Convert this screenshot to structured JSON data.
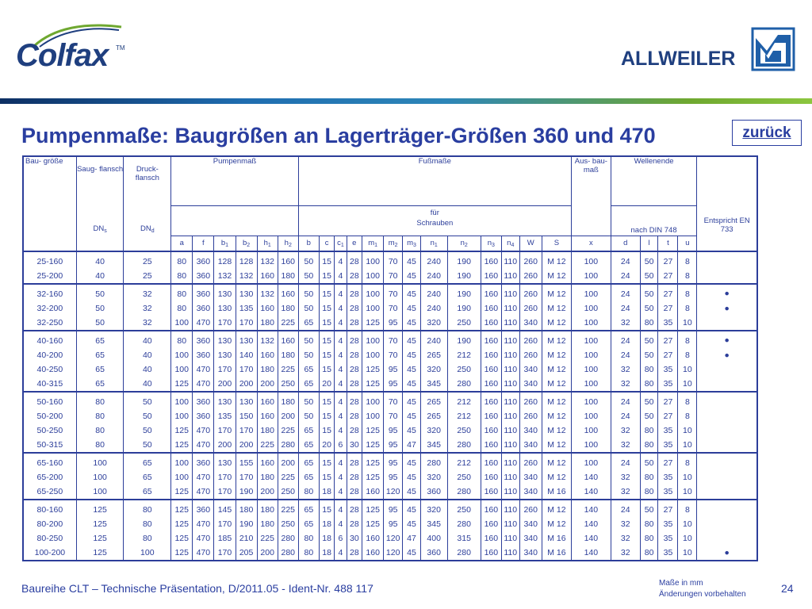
{
  "logos": {
    "colfax": "Colfax",
    "colfax_tm": "TM",
    "allweiler": "ALLWEILER"
  },
  "back_label": "zurück",
  "title": "Pumpenmaße: Baugrößen an Lagerträger-Größen 360 und 470",
  "header": {
    "bau_groesse": "Bau- größe",
    "saug": "Saug- flansch",
    "druck": "Druck- flansch",
    "pumpenmass": "Pumpenmaß",
    "fussmasse": "Fußmaße",
    "ausbau": "Aus- bau- maß",
    "wellenende": "Wellenende",
    "fuer": "für",
    "schrauben": "Schrauben",
    "nach_din": "nach DIN 748",
    "entspricht": "Entspricht EN 733",
    "dn": "DN",
    "dn_s": "s",
    "dn_d": "d",
    "cols": [
      [
        "a",
        ""
      ],
      [
        "f",
        ""
      ],
      [
        "b",
        "1"
      ],
      [
        "b",
        "2"
      ],
      [
        "h",
        "1"
      ],
      [
        "h",
        "2"
      ],
      [
        "b",
        ""
      ],
      [
        "c",
        ""
      ],
      [
        "c",
        "1"
      ],
      [
        "e",
        ""
      ],
      [
        "m",
        "1"
      ],
      [
        "m",
        "2"
      ],
      [
        "m",
        "3"
      ],
      [
        "n",
        "1"
      ],
      [
        "n",
        "2"
      ],
      [
        "n",
        "3"
      ],
      [
        "n",
        "4"
      ],
      [
        "W",
        ""
      ],
      [
        "S",
        ""
      ],
      [
        "x",
        ""
      ],
      [
        "d",
        ""
      ],
      [
        "l",
        ""
      ],
      [
        "t",
        ""
      ],
      [
        "u",
        ""
      ]
    ]
  },
  "groups": [
    [
      [
        "25-160",
        "40",
        "25",
        "80",
        "360",
        "128",
        "128",
        "132",
        "160",
        "50",
        "15",
        "4",
        "28",
        "100",
        "70",
        "45",
        "240",
        "190",
        "160",
        "110",
        "260",
        "M 12",
        "100",
        "24",
        "50",
        "27",
        "8",
        ""
      ],
      [
        "25-200",
        "40",
        "25",
        "80",
        "360",
        "132",
        "132",
        "160",
        "180",
        "50",
        "15",
        "4",
        "28",
        "100",
        "70",
        "45",
        "240",
        "190",
        "160",
        "110",
        "260",
        "M 12",
        "100",
        "24",
        "50",
        "27",
        "8",
        ""
      ]
    ],
    [
      [
        "32-160",
        "50",
        "32",
        "80",
        "360",
        "130",
        "130",
        "132",
        "160",
        "50",
        "15",
        "4",
        "28",
        "100",
        "70",
        "45",
        "240",
        "190",
        "160",
        "110",
        "260",
        "M 12",
        "100",
        "24",
        "50",
        "27",
        "8",
        "●"
      ],
      [
        "32-200",
        "50",
        "32",
        "80",
        "360",
        "130",
        "135",
        "160",
        "180",
        "50",
        "15",
        "4",
        "28",
        "100",
        "70",
        "45",
        "240",
        "190",
        "160",
        "110",
        "260",
        "M 12",
        "100",
        "24",
        "50",
        "27",
        "8",
        "●"
      ],
      [
        "32-250",
        "50",
        "32",
        "100",
        "470",
        "170",
        "170",
        "180",
        "225",
        "65",
        "15",
        "4",
        "28",
        "125",
        "95",
        "45",
        "320",
        "250",
        "160",
        "110",
        "340",
        "M 12",
        "100",
        "32",
        "80",
        "35",
        "10",
        ""
      ]
    ],
    [
      [
        "40-160",
        "65",
        "40",
        "80",
        "360",
        "130",
        "130",
        "132",
        "160",
        "50",
        "15",
        "4",
        "28",
        "100",
        "70",
        "45",
        "240",
        "190",
        "160",
        "110",
        "260",
        "M 12",
        "100",
        "24",
        "50",
        "27",
        "8",
        "●"
      ],
      [
        "40-200",
        "65",
        "40",
        "100",
        "360",
        "130",
        "140",
        "160",
        "180",
        "50",
        "15",
        "4",
        "28",
        "100",
        "70",
        "45",
        "265",
        "212",
        "160",
        "110",
        "260",
        "M 12",
        "100",
        "24",
        "50",
        "27",
        "8",
        "●"
      ],
      [
        "40-250",
        "65",
        "40",
        "100",
        "470",
        "170",
        "170",
        "180",
        "225",
        "65",
        "15",
        "4",
        "28",
        "125",
        "95",
        "45",
        "320",
        "250",
        "160",
        "110",
        "340",
        "M 12",
        "100",
        "32",
        "80",
        "35",
        "10",
        ""
      ],
      [
        "40-315",
        "65",
        "40",
        "125",
        "470",
        "200",
        "200",
        "200",
        "250",
        "65",
        "20",
        "4",
        "28",
        "125",
        "95",
        "45",
        "345",
        "280",
        "160",
        "110",
        "340",
        "M 12",
        "100",
        "32",
        "80",
        "35",
        "10",
        ""
      ]
    ],
    [
      [
        "50-160",
        "80",
        "50",
        "100",
        "360",
        "130",
        "130",
        "160",
        "180",
        "50",
        "15",
        "4",
        "28",
        "100",
        "70",
        "45",
        "265",
        "212",
        "160",
        "110",
        "260",
        "M 12",
        "100",
        "24",
        "50",
        "27",
        "8",
        ""
      ],
      [
        "50-200",
        "80",
        "50",
        "100",
        "360",
        "135",
        "150",
        "160",
        "200",
        "50",
        "15",
        "4",
        "28",
        "100",
        "70",
        "45",
        "265",
        "212",
        "160",
        "110",
        "260",
        "M 12",
        "100",
        "24",
        "50",
        "27",
        "8",
        ""
      ],
      [
        "50-250",
        "80",
        "50",
        "125",
        "470",
        "170",
        "170",
        "180",
        "225",
        "65",
        "15",
        "4",
        "28",
        "125",
        "95",
        "45",
        "320",
        "250",
        "160",
        "110",
        "340",
        "M 12",
        "100",
        "32",
        "80",
        "35",
        "10",
        ""
      ],
      [
        "50-315",
        "80",
        "50",
        "125",
        "470",
        "200",
        "200",
        "225",
        "280",
        "65",
        "20",
        "6",
        "30",
        "125",
        "95",
        "47",
        "345",
        "280",
        "160",
        "110",
        "340",
        "M 12",
        "100",
        "32",
        "80",
        "35",
        "10",
        ""
      ]
    ],
    [
      [
        "65-160",
        "100",
        "65",
        "100",
        "360",
        "130",
        "155",
        "160",
        "200",
        "65",
        "15",
        "4",
        "28",
        "125",
        "95",
        "45",
        "280",
        "212",
        "160",
        "110",
        "260",
        "M 12",
        "100",
        "24",
        "50",
        "27",
        "8",
        ""
      ],
      [
        "65-200",
        "100",
        "65",
        "100",
        "470",
        "170",
        "170",
        "180",
        "225",
        "65",
        "15",
        "4",
        "28",
        "125",
        "95",
        "45",
        "320",
        "250",
        "160",
        "110",
        "340",
        "M 12",
        "140",
        "32",
        "80",
        "35",
        "10",
        ""
      ],
      [
        "65-250",
        "100",
        "65",
        "125",
        "470",
        "170",
        "190",
        "200",
        "250",
        "80",
        "18",
        "4",
        "28",
        "160",
        "120",
        "45",
        "360",
        "280",
        "160",
        "110",
        "340",
        "M 16",
        "140",
        "32",
        "80",
        "35",
        "10",
        ""
      ]
    ],
    [
      [
        "80-160",
        "125",
        "80",
        "125",
        "360",
        "145",
        "180",
        "180",
        "225",
        "65",
        "15",
        "4",
        "28",
        "125",
        "95",
        "45",
        "320",
        "250",
        "160",
        "110",
        "260",
        "M 12",
        "140",
        "24",
        "50",
        "27",
        "8",
        ""
      ],
      [
        "80-200",
        "125",
        "80",
        "125",
        "470",
        "170",
        "190",
        "180",
        "250",
        "65",
        "18",
        "4",
        "28",
        "125",
        "95",
        "45",
        "345",
        "280",
        "160",
        "110",
        "340",
        "M 12",
        "140",
        "32",
        "80",
        "35",
        "10",
        ""
      ],
      [
        "80-250",
        "125",
        "80",
        "125",
        "470",
        "185",
        "210",
        "225",
        "280",
        "80",
        "18",
        "6",
        "30",
        "160",
        "120",
        "47",
        "400",
        "315",
        "160",
        "110",
        "340",
        "M 16",
        "140",
        "32",
        "80",
        "35",
        "10",
        ""
      ],
      [
        "100-200",
        "125",
        "100",
        "125",
        "470",
        "170",
        "205",
        "200",
        "280",
        "80",
        "18",
        "4",
        "28",
        "160",
        "120",
        "45",
        "360",
        "280",
        "160",
        "110",
        "340",
        "M 16",
        "140",
        "32",
        "80",
        "35",
        "10",
        "●"
      ]
    ]
  ],
  "footer": "Baureihe CLT – Technische Präsentation, D/2011.05 - Ident-Nr. 488 117",
  "note_line1": "Maße in mm",
  "note_line2": "Änderungen vorbehalten",
  "page_number": "24"
}
